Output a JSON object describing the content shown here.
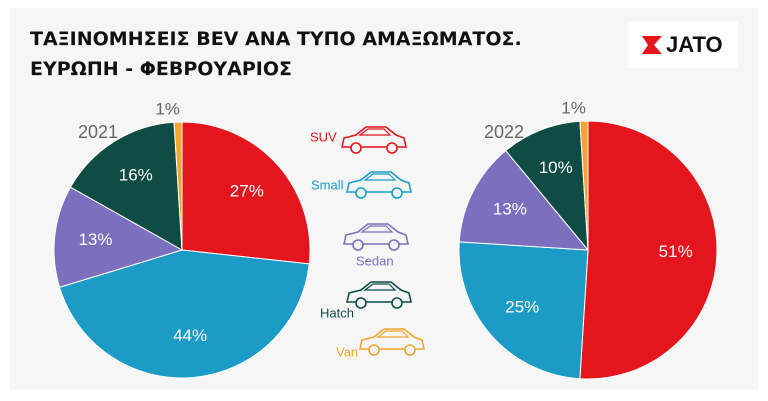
{
  "header": {
    "title": "ΤΑΞΙΝΟΜΗΣΕΙΣ BEV ΑΝΑ ΤΥΠΟ ΑΜΑΞΩΜΑΤΟΣ.",
    "subtitle": "ΕΥΡΩΠΗ - ΦΕΒΡΟΥΑΡΙΟΣ",
    "logo": "JATO"
  },
  "chart_data": [
    {
      "type": "pie",
      "title": "2021",
      "categories": [
        "SUV",
        "Small",
        "Sedan",
        "Hatch",
        "Van"
      ],
      "values": [
        27,
        44,
        13,
        16,
        1
      ],
      "value_labels": [
        "27%",
        "44%",
        "13%",
        "16%",
        "1%"
      ],
      "colors": [
        "#e4151c",
        "#1b9bc5",
        "#7c6fbe",
        "#0f4c44",
        "#f4a531"
      ]
    },
    {
      "type": "pie",
      "title": "2022",
      "categories": [
        "SUV",
        "Small",
        "Sedan",
        "Hatch",
        "Van"
      ],
      "values": [
        51,
        25,
        13,
        10,
        1
      ],
      "value_labels": [
        "51%",
        "25%",
        "13%",
        "10%",
        "1%"
      ],
      "colors": [
        "#e4151c",
        "#1b9bc5",
        "#7c6fbe",
        "#0f4c44",
        "#f4a531"
      ]
    }
  ]
}
